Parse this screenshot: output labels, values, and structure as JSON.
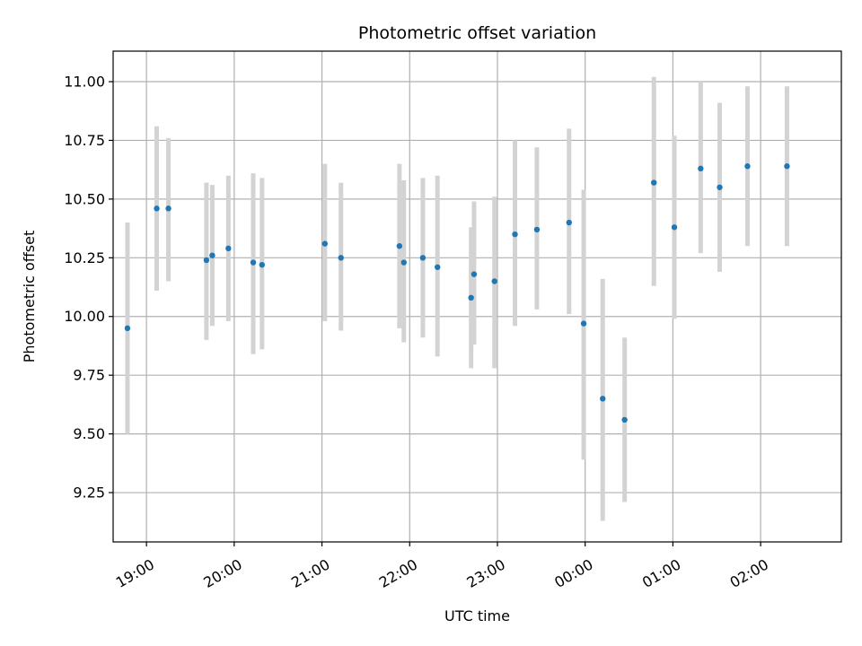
{
  "chart_data": {
    "type": "scatter",
    "title": "Photometric offset variation",
    "xlabel": "UTC time",
    "ylabel": "Photometric offset",
    "x_ticks": [
      "19:00",
      "20:00",
      "21:00",
      "22:00",
      "23:00",
      "00:00",
      "01:00",
      "02:00"
    ],
    "x_tick_hours": [
      19,
      20,
      21,
      22,
      23,
      24,
      25,
      26
    ],
    "xlim_hours": [
      18.62,
      26.92
    ],
    "y_ticks": [
      "9.25",
      "9.50",
      "9.75",
      "10.00",
      "10.25",
      "10.50",
      "10.75",
      "11.00"
    ],
    "y_tick_values": [
      9.25,
      9.5,
      9.75,
      10.0,
      10.25,
      10.5,
      10.75,
      11.0
    ],
    "ylim": [
      9.04,
      11.13
    ],
    "grid": true,
    "marker_color": "#1f77b4",
    "errorbar_color": "#d3d3d3",
    "points": [
      {
        "time": "18:47",
        "y": 9.95,
        "low": 9.5,
        "high": 10.4
      },
      {
        "time": "19:07",
        "y": 10.46,
        "low": 10.11,
        "high": 10.81
      },
      {
        "time": "19:15",
        "y": 10.46,
        "low": 10.15,
        "high": 10.76
      },
      {
        "time": "19:41",
        "y": 10.24,
        "low": 9.9,
        "high": 10.57
      },
      {
        "time": "19:45",
        "y": 10.26,
        "low": 9.96,
        "high": 10.56
      },
      {
        "time": "19:56",
        "y": 10.29,
        "low": 9.98,
        "high": 10.6
      },
      {
        "time": "20:13",
        "y": 10.23,
        "low": 9.84,
        "high": 10.61
      },
      {
        "time": "20:19",
        "y": 10.22,
        "low": 9.86,
        "high": 10.59
      },
      {
        "time": "21:02",
        "y": 10.31,
        "low": 9.98,
        "high": 10.65
      },
      {
        "time": "21:13",
        "y": 10.25,
        "low": 9.94,
        "high": 10.57
      },
      {
        "time": "21:53",
        "y": 10.3,
        "low": 9.95,
        "high": 10.65
      },
      {
        "time": "21:56",
        "y": 10.23,
        "low": 9.89,
        "high": 10.58
      },
      {
        "time": "22:09",
        "y": 10.25,
        "low": 9.91,
        "high": 10.59
      },
      {
        "time": "22:19",
        "y": 10.21,
        "low": 9.83,
        "high": 10.6
      },
      {
        "time": "22:42",
        "y": 10.08,
        "low": 9.78,
        "high": 10.38
      },
      {
        "time": "22:44",
        "y": 10.18,
        "low": 9.88,
        "high": 10.49
      },
      {
        "time": "22:58",
        "y": 10.15,
        "low": 9.78,
        "high": 10.51
      },
      {
        "time": "23:12",
        "y": 10.35,
        "low": 9.96,
        "high": 10.75
      },
      {
        "time": "23:27",
        "y": 10.37,
        "low": 10.03,
        "high": 10.72
      },
      {
        "time": "23:49",
        "y": 10.4,
        "low": 10.01,
        "high": 10.8
      },
      {
        "time": "23:59",
        "y": 9.97,
        "low": 9.39,
        "high": 10.54
      },
      {
        "time": "00:12",
        "y": 9.65,
        "low": 9.13,
        "high": 10.16
      },
      {
        "time": "00:27",
        "y": 9.56,
        "low": 9.21,
        "high": 9.91
      },
      {
        "time": "00:47",
        "y": 10.57,
        "low": 10.13,
        "high": 11.02
      },
      {
        "time": "01:01",
        "y": 10.38,
        "low": 9.99,
        "high": 10.77
      },
      {
        "time": "01:19",
        "y": 10.63,
        "low": 10.27,
        "high": 11.0
      },
      {
        "time": "01:32",
        "y": 10.55,
        "low": 10.19,
        "high": 10.91
      },
      {
        "time": "01:51",
        "y": 10.64,
        "low": 10.3,
        "high": 10.98
      },
      {
        "time": "02:18",
        "y": 10.64,
        "low": 10.3,
        "high": 10.98
      }
    ]
  }
}
